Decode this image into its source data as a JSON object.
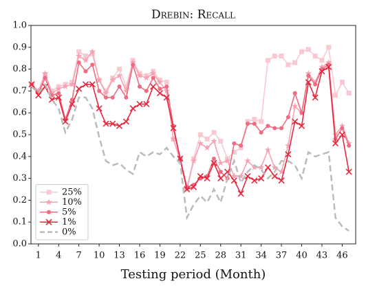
{
  "chart_data": {
    "type": "line",
    "title": "Drebin: Recall",
    "xlabel": "Testing period (Month)",
    "x": [
      0,
      1,
      2,
      3,
      4,
      5,
      6,
      7,
      8,
      9,
      10,
      11,
      12,
      13,
      14,
      15,
      16,
      17,
      18,
      19,
      20,
      21,
      22,
      23,
      24,
      25,
      26,
      27,
      28,
      29,
      30,
      31,
      32,
      33,
      34,
      35,
      36,
      37,
      38,
      39,
      40,
      41,
      42,
      43,
      44,
      45,
      46,
      47
    ],
    "xlim": [
      -0.1,
      48
    ],
    "xticks": [
      1,
      4,
      7,
      10,
      13,
      16,
      19,
      22,
      25,
      28,
      31,
      34,
      37,
      40,
      43,
      46
    ],
    "ylim": [
      0,
      1
    ],
    "yticks": [
      {
        "value": 0,
        "label": "0.0"
      },
      {
        "value": 0.1,
        "label": "0.1"
      },
      {
        "value": 0.2,
        "label": "0.2"
      },
      {
        "value": 0.3,
        "label": "0.3"
      },
      {
        "value": 0.4,
        "label": "0.4"
      },
      {
        "value": 0.5,
        "label": "0.5"
      },
      {
        "value": 0.6,
        "label": "0.6"
      },
      {
        "value": 0.7,
        "label": "0.7"
      },
      {
        "value": 0.8,
        "label": "0.8"
      },
      {
        "value": 0.9,
        "label": "0.9"
      },
      {
        "value": 1,
        "label": "1.0"
      }
    ],
    "legend": "lower left",
    "series": [
      {
        "name": "25%",
        "color": "#f9c9d2",
        "marker": "square",
        "values": [
          0.73,
          0.7,
          0.77,
          0.7,
          0.72,
          0.73,
          0.74,
          0.88,
          0.86,
          0.87,
          0.75,
          0.7,
          0.76,
          0.8,
          0.72,
          0.84,
          0.78,
          0.77,
          0.79,
          0.75,
          0.74,
          0.48,
          0.39,
          0.26,
          0.39,
          0.5,
          0.48,
          0.51,
          0.47,
          0.39,
          0.42,
          0.44,
          0.56,
          0.57,
          0.56,
          0.84,
          0.86,
          0.86,
          0.82,
          0.83,
          0.88,
          0.89,
          0.86,
          0.84,
          0.9,
          0.68,
          0.74,
          0.69
        ]
      },
      {
        "name": "10%",
        "color": "#f5a3b3",
        "marker": "star",
        "values": [
          0.73,
          0.7,
          0.78,
          0.69,
          0.71,
          0.72,
          0.73,
          0.86,
          0.84,
          0.88,
          0.75,
          0.69,
          0.75,
          0.77,
          0.7,
          0.83,
          0.77,
          0.76,
          0.78,
          0.74,
          0.7,
          0.48,
          0.38,
          0.25,
          0.38,
          0.46,
          0.44,
          0.47,
          0.37,
          0.38,
          0.31,
          0.31,
          0.38,
          0.35,
          0.35,
          0.43,
          0.35,
          0.33,
          0.45,
          0.63,
          0.6,
          0.78,
          0.74,
          0.81,
          0.83,
          0.5,
          0.54,
          0.46
        ]
      },
      {
        "name": "5%",
        "color": "#ee6b82",
        "marker": "circle",
        "values": [
          0.73,
          0.69,
          0.76,
          0.68,
          0.69,
          0.57,
          0.66,
          0.83,
          0.79,
          0.82,
          0.7,
          0.67,
          0.67,
          0.72,
          0.67,
          0.82,
          0.72,
          0.7,
          0.76,
          0.71,
          0.72,
          0.54,
          0.39,
          0.26,
          0.27,
          0.3,
          0.31,
          0.39,
          0.33,
          0.3,
          0.46,
          0.45,
          0.55,
          0.55,
          0.51,
          0.54,
          0.53,
          0.53,
          0.58,
          0.69,
          0.6,
          0.77,
          0.73,
          0.8,
          0.82,
          0.48,
          0.53,
          0.45
        ]
      },
      {
        "name": "1%",
        "color": "#e6283e",
        "marker": "x",
        "values": [
          0.73,
          0.68,
          0.72,
          0.66,
          0.67,
          0.56,
          0.64,
          0.71,
          0.73,
          0.73,
          0.62,
          0.55,
          0.55,
          0.54,
          0.56,
          0.62,
          0.64,
          0.64,
          0.72,
          0.69,
          0.67,
          0.53,
          0.39,
          0.25,
          0.26,
          0.31,
          0.3,
          0.37,
          0.3,
          0.33,
          0.29,
          0.23,
          0.31,
          0.29,
          0.3,
          0.35,
          0.31,
          0.29,
          0.41,
          0.56,
          0.54,
          0.74,
          0.67,
          0.79,
          0.81,
          0.46,
          0.5,
          0.33
        ]
      },
      {
        "name": "0%",
        "color": "#bbbbbb",
        "marker": "none",
        "dashed": true,
        "values": [
          0.72,
          0.69,
          0.73,
          0.66,
          0.62,
          0.51,
          0.57,
          0.67,
          0.67,
          0.62,
          0.49,
          0.38,
          0.36,
          0.37,
          0.34,
          0.32,
          0.42,
          0.4,
          0.42,
          0.41,
          0.44,
          0.4,
          0.37,
          0.12,
          0.18,
          0.22,
          0.19,
          0.25,
          0.19,
          0.3,
          0.38,
          0.28,
          0.33,
          0.36,
          0.34,
          0.3,
          0.33,
          0.38,
          0.38,
          0.36,
          0.3,
          0.42,
          0.4,
          0.41,
          0.42,
          0.12,
          0.08,
          0.06
        ]
      }
    ]
  }
}
